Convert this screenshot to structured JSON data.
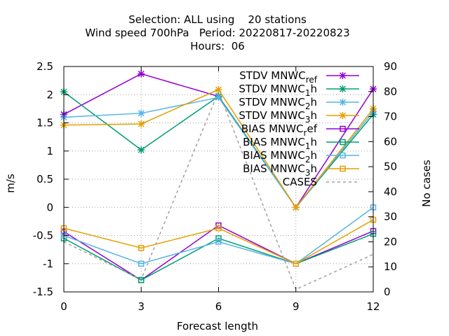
{
  "chart_data": {
    "type": "line",
    "title_lines": [
      "Selection: ALL using    20 stations",
      "Wind speed 700hPa   Period: 20220817-20220823",
      "Hours:  06"
    ],
    "xlabel": "Forecast length",
    "ylabel": "m/s",
    "y2label": "No cases",
    "x": [
      0,
      3,
      6,
      9,
      12
    ],
    "xlim": [
      0,
      12
    ],
    "ylim": [
      -1.5,
      2.5
    ],
    "y2lim": [
      0,
      90
    ],
    "x_ticks": [
      "0",
      "3",
      "6",
      "9",
      "12"
    ],
    "y_ticks": [
      "-1.5",
      "-1",
      "-0.5",
      "0",
      "0.5",
      "1",
      "1.5",
      "2",
      "2.5"
    ],
    "y2_ticks": [
      "0",
      "10",
      "20",
      "30",
      "40",
      "50",
      "60",
      "70",
      "80",
      "90"
    ],
    "grid": true,
    "legend_position": "top-right",
    "series": [
      {
        "name": "STDV MNWC_ref",
        "base": "STDV MNWC",
        "sub": "ref",
        "color": "#9400d3",
        "marker": "x",
        "axis": "y1",
        "values": [
          1.65,
          2.37,
          1.97,
          0.0,
          2.1
        ]
      },
      {
        "name": "STDV MNWC_1h",
        "base": "STDV MNWC",
        "sub": "1",
        "tail": "h",
        "color": "#009e73",
        "marker": "x",
        "axis": "y1",
        "values": [
          2.05,
          1.02,
          1.97,
          0.0,
          1.65
        ]
      },
      {
        "name": "STDV MNWC_2h",
        "base": "STDV MNWC",
        "sub": "2",
        "tail": "h",
        "color": "#56b4e9",
        "marker": "x",
        "axis": "y1",
        "values": [
          1.6,
          1.67,
          1.95,
          0.0,
          1.7
        ]
      },
      {
        "name": "STDV MNWC_3h",
        "base": "STDV MNWC",
        "sub": "3",
        "tail": "h",
        "color": "#e69f00",
        "marker": "x",
        "axis": "y1",
        "values": [
          1.46,
          1.48,
          2.09,
          0.0,
          1.75
        ]
      },
      {
        "name": "BIAS MNWC_ref",
        "base": "BIAS MNWC",
        "sub": "r",
        "tail": "ef",
        "color": "#9400d3",
        "marker": "square",
        "axis": "y1",
        "values": [
          -0.43,
          -1.29,
          -0.32,
          -1.0,
          -0.42
        ]
      },
      {
        "name": "BIAS MNWC_1h",
        "base": "BIAS MNWC",
        "sub": "1",
        "tail": "h",
        "color": "#009e73",
        "marker": "square",
        "axis": "y1",
        "values": [
          -0.55,
          -1.29,
          -0.55,
          -1.0,
          -0.47
        ]
      },
      {
        "name": "BIAS MNWC_2h",
        "base": "BIAS MNWC",
        "sub": "2",
        "tail": "h",
        "color": "#56b4e9",
        "marker": "square",
        "axis": "y1",
        "values": [
          -0.5,
          -1.0,
          -0.61,
          -1.0,
          0.0
        ]
      },
      {
        "name": "BIAS MNWC_3h",
        "base": "BIAS MNWC",
        "sub": "3",
        "tail": "h",
        "color": "#e69f00",
        "marker": "square",
        "axis": "y1",
        "values": [
          -0.37,
          -0.72,
          -0.37,
          -1.0,
          -0.22
        ]
      },
      {
        "name": "CASES",
        "base": "CASES",
        "color": "#a0a0a0",
        "marker": "none",
        "dashed": true,
        "axis": "y2",
        "values": [
          20,
          5,
          80,
          1,
          15
        ]
      }
    ]
  }
}
